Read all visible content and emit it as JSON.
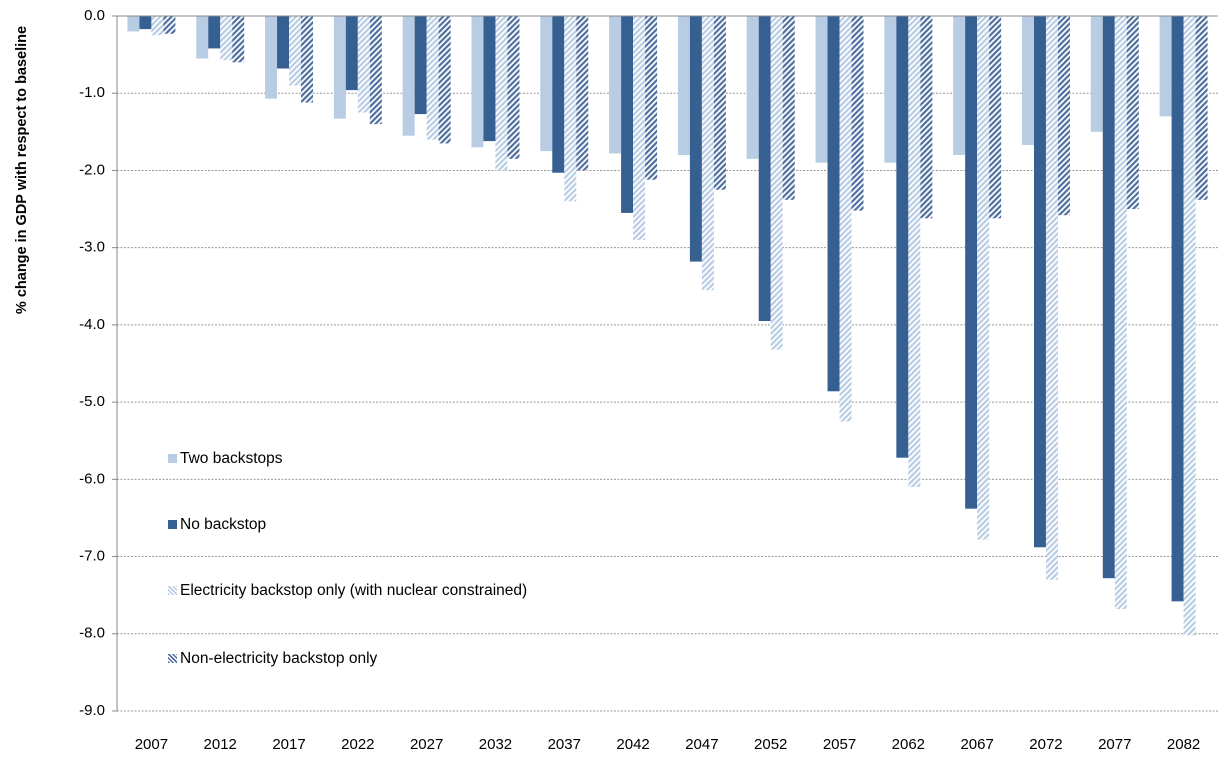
{
  "chart_data": {
    "type": "bar",
    "y_label": "% change in GDP with respect to baseline",
    "categories": [
      "2007",
      "2012",
      "2017",
      "2022",
      "2027",
      "2032",
      "2037",
      "2042",
      "2047",
      "2052",
      "2057",
      "2062",
      "2067",
      "2072",
      "2077",
      "2082"
    ],
    "series": [
      {
        "name": "Two backstops",
        "color": "#b8cce4",
        "hatch": false,
        "values": [
          -0.2,
          -0.55,
          -1.07,
          -1.33,
          -1.55,
          -1.7,
          -1.75,
          -1.78,
          -1.8,
          -1.85,
          -1.9,
          -1.9,
          -1.8,
          -1.67,
          -1.5,
          -1.3
        ]
      },
      {
        "name": "No backstop",
        "color": "#376092",
        "hatch": false,
        "values": [
          -0.17,
          -0.42,
          -0.68,
          -0.96,
          -1.27,
          -1.62,
          -2.03,
          -2.55,
          -3.18,
          -3.95,
          -4.86,
          -5.72,
          -6.38,
          -6.88,
          -7.28,
          -7.58
        ]
      },
      {
        "name": "Electricity backstop only (with nuclear constrained)",
        "color": "#b8cce4",
        "hatch": true,
        "values": [
          -0.25,
          -0.57,
          -0.9,
          -1.25,
          -1.6,
          -2.0,
          -2.4,
          -2.9,
          -3.55,
          -4.32,
          -5.25,
          -6.1,
          -6.78,
          -7.3,
          -7.68,
          -8.02
        ]
      },
      {
        "name": "Non-electricity backstop only",
        "color": "#4f6f9f",
        "hatch": true,
        "values": [
          -0.23,
          -0.6,
          -1.12,
          -1.4,
          -1.65,
          -1.85,
          -2.0,
          -2.12,
          -2.25,
          -2.38,
          -2.52,
          -2.62,
          -2.62,
          -2.58,
          -2.5,
          -2.38
        ]
      }
    ],
    "ylim": [
      0,
      -9
    ],
    "yticks": [
      {
        "value": 0,
        "label": "0.0"
      },
      {
        "value": -1,
        "label": "-1.0"
      },
      {
        "value": -2,
        "label": "-2.0"
      },
      {
        "value": -3,
        "label": "-3.0"
      },
      {
        "value": -4,
        "label": "-4.0"
      },
      {
        "value": -5,
        "label": "-5.0"
      },
      {
        "value": -6,
        "label": "-6.0"
      },
      {
        "value": -7,
        "label": "-7.0"
      },
      {
        "value": -8,
        "label": "-8.0"
      },
      {
        "value": -9,
        "label": "-9.0"
      }
    ],
    "grid": true,
    "legend": "left"
  }
}
